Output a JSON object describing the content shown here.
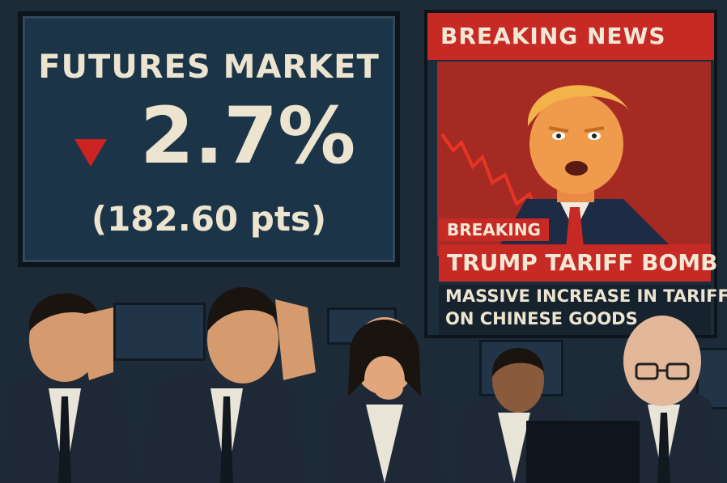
{
  "futures": {
    "title": "FUTURES MARKET",
    "change": "2.7%",
    "points": "(182.60 pts)",
    "direction": "down",
    "arrow_color": "#cc2222"
  },
  "news": {
    "header": "BREAKING NEWS",
    "tag": "BREAKING",
    "headline": "TRUMP TARIFF BOMB",
    "ticker_line1": "MASSIVE INCREASE IN TARIFF",
    "ticker_line2": "ON CHINESE GOODS",
    "accent_color": "#c72a25"
  },
  "icons": [
    "down-arrow-icon"
  ]
}
